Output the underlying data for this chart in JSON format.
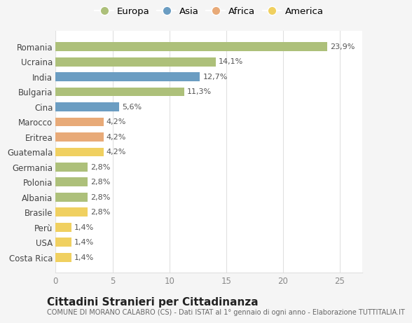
{
  "countries": [
    "Costa Rica",
    "USA",
    "Perù",
    "Brasile",
    "Albania",
    "Polonia",
    "Germania",
    "Guatemala",
    "Eritrea",
    "Marocco",
    "Cina",
    "Bulgaria",
    "India",
    "Ucraina",
    "Romania"
  ],
  "values": [
    1.4,
    1.4,
    1.4,
    2.8,
    2.8,
    2.8,
    2.8,
    4.2,
    4.2,
    4.2,
    5.6,
    11.3,
    12.7,
    14.1,
    23.9
  ],
  "labels": [
    "1,4%",
    "1,4%",
    "1,4%",
    "2,8%",
    "2,8%",
    "2,8%",
    "2,8%",
    "4,2%",
    "4,2%",
    "4,2%",
    "5,6%",
    "11,3%",
    "12,7%",
    "14,1%",
    "23,9%"
  ],
  "continents": [
    "America",
    "America",
    "America",
    "America",
    "Europa",
    "Europa",
    "Europa",
    "America",
    "Africa",
    "Africa",
    "Asia",
    "Europa",
    "Asia",
    "Europa",
    "Europa"
  ],
  "colors": {
    "Europa": "#adc07a",
    "Asia": "#6b9dc2",
    "Africa": "#e8aa78",
    "America": "#f0d060"
  },
  "legend_order": [
    "Europa",
    "Asia",
    "Africa",
    "America"
  ],
  "title": "Cittadini Stranieri per Cittadinanza",
  "subtitle": "COMUNE DI MORANO CALABRO (CS) - Dati ISTAT al 1° gennaio di ogni anno - Elaborazione TUTTITALIA.IT",
  "xlim": [
    0,
    27
  ],
  "xticks": [
    0,
    5,
    10,
    15,
    20,
    25
  ],
  "background_color": "#f5f5f5",
  "bar_background": "#ffffff",
  "grid_color": "#e0e0e0",
  "bar_height": 0.6,
  "title_fontsize": 11,
  "subtitle_fontsize": 7,
  "label_fontsize": 8,
  "tick_fontsize": 8.5,
  "legend_fontsize": 9.5
}
